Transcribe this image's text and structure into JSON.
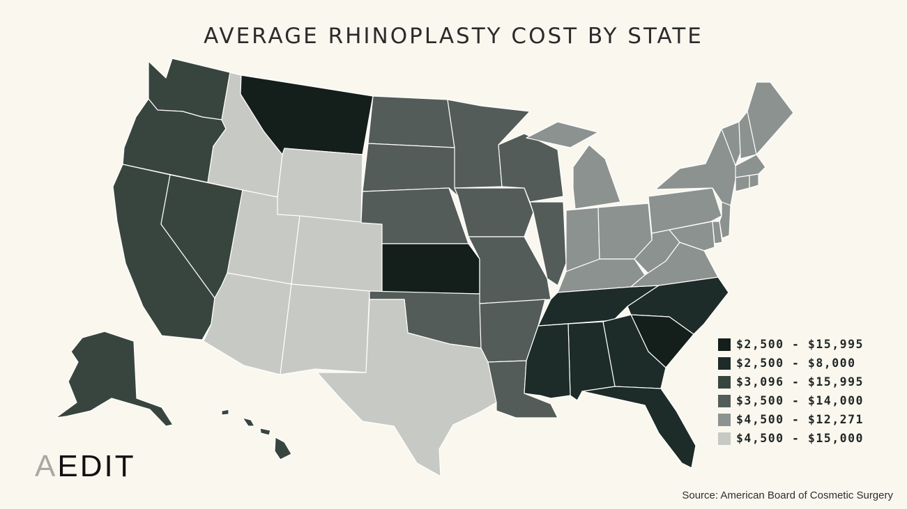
{
  "title": "AVERAGE RHINOPLASTY COST BY STATE",
  "colors": {
    "background": "#faf7ef",
    "tier1": "#141f1b",
    "tier2": "#1d2b29",
    "tier3": "#38453f",
    "tier4": "#535c58",
    "tier5": "#8c928f",
    "tier6": "#c7c9c5"
  },
  "legend": [
    {
      "label": "$2,500 - $15,995",
      "tier": "tier1"
    },
    {
      "label": "$2,500 - $8,000",
      "tier": "tier2"
    },
    {
      "label": "$3,096 - $15,995",
      "tier": "tier3"
    },
    {
      "label": "$3,500 - $14,000",
      "tier": "tier4"
    },
    {
      "label": "$4,500 - $12,271",
      "tier": "tier5"
    },
    {
      "label": "$4,500 - $15,000",
      "tier": "tier6"
    }
  ],
  "state_tiers": {
    "montana": "tier1",
    "kansas": "tier1",
    "south-carolina": "tier1",
    "tennessee": "tier2",
    "north-carolina": "tier2",
    "mississippi": "tier2",
    "alabama": "tier2",
    "georgia": "tier2",
    "florida": "tier2",
    "washington": "tier3",
    "oregon": "tier3",
    "california": "tier3",
    "nevada": "tier3",
    "alaska": "tier3",
    "hawaii": "tier3",
    "north-dakota": "tier4",
    "south-dakota": "tier4",
    "nebraska": "tier4",
    "minnesota": "tier4",
    "iowa": "tier4",
    "missouri": "tier4",
    "wisconsin": "tier4",
    "illinois": "tier4",
    "oklahoma": "tier4",
    "arkansas": "tier4",
    "louisiana": "tier4",
    "michigan": "tier5",
    "indiana": "tier5",
    "ohio": "tier5",
    "kentucky": "tier5",
    "west-virginia": "tier5",
    "virginia": "tier5",
    "maryland": "tier5",
    "delaware": "tier5",
    "pennsylvania": "tier5",
    "new-jersey": "tier5",
    "new-york": "tier5",
    "connecticut": "tier5",
    "rhode-island": "tier5",
    "massachusetts": "tier5",
    "vermont": "tier5",
    "new-hampshire": "tier5",
    "maine": "tier5",
    "idaho": "tier6",
    "wyoming": "tier6",
    "utah": "tier6",
    "colorado": "tier6",
    "arizona": "tier6",
    "new-mexico": "tier6",
    "texas": "tier6"
  },
  "logo": {
    "lead": "A",
    "rest": "EDIT"
  },
  "source": "Source: American Board of Cosmetic Surgery"
}
